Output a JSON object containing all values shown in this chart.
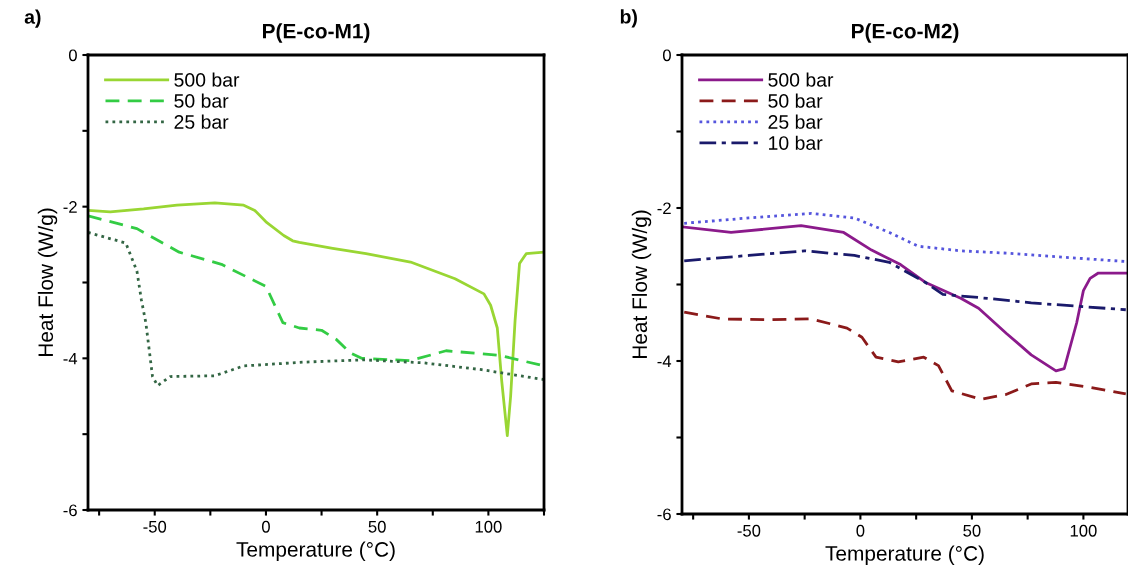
{
  "chart_data": [
    {
      "type": "line",
      "title": "P(E-co-M1)",
      "xlabel": "Temperature (°C)",
      "ylabel": "Heat Flow (W/g)",
      "annotations": [
        "a)"
      ],
      "xlim": [
        -80,
        125
      ],
      "ylim": [
        -6,
        0
      ],
      "xticks": [
        {
          "value": -75,
          "label": null
        },
        -50,
        {
          "value": -25,
          "label": null
        },
        0,
        {
          "value": 25,
          "label": null
        },
        50,
        {
          "value": 75,
          "label": null
        },
        100,
        {
          "value": 125,
          "label": null
        }
      ],
      "yticks": [
        -6,
        {
          "value": -5,
          "label": null
        },
        -4,
        {
          "value": -3,
          "label": null
        },
        -2,
        {
          "value": -1,
          "label": null
        },
        0
      ],
      "grid": false,
      "legend": "top left",
      "marker": "none",
      "series": [
        {
          "name": "500 bar",
          "color": "#99d633",
          "line_style": "solid",
          "x": [
            -80,
            -70,
            -55,
            -40,
            -23,
            -10,
            -5,
            0,
            8,
            12,
            15,
            30,
            45,
            65,
            85,
            98,
            101,
            104,
            106,
            108.5,
            110,
            112,
            114,
            117,
            125
          ],
          "values": [
            -2.05,
            -2.07,
            -2.03,
            -1.98,
            -1.95,
            -1.98,
            -2.05,
            -2.2,
            -2.38,
            -2.45,
            -2.47,
            -2.55,
            -2.62,
            -2.73,
            -2.95,
            -3.15,
            -3.3,
            -3.6,
            -4.3,
            -5.02,
            -4.5,
            -3.5,
            -2.75,
            -2.62,
            -2.6
          ]
        },
        {
          "name": "50 bar",
          "color": "#33cc44",
          "line_style": "dashed",
          "x": [
            -80,
            -58,
            -39,
            -20,
            -7,
            0,
            7.6,
            15,
            25,
            31.6,
            38,
            43,
            65,
            81,
            105,
            125
          ],
          "values": [
            -2.12,
            -2.29,
            -2.6,
            -2.76,
            -2.95,
            -3.05,
            -3.53,
            -3.6,
            -3.63,
            -3.75,
            -3.93,
            -4.0,
            -4.03,
            -3.9,
            -3.96,
            -4.1
          ]
        },
        {
          "name": "25 bar",
          "color": "#336644",
          "line_style": "dotted",
          "x": [
            -80,
            -63,
            -58,
            -56,
            -54,
            -51,
            -48.7,
            -43,
            -23,
            -10,
            17,
            44,
            71,
            97,
            125
          ],
          "values": [
            -2.34,
            -2.48,
            -2.85,
            -3.23,
            -3.53,
            -4.24,
            -4.36,
            -4.24,
            -4.23,
            -4.1,
            -4.05,
            -4.02,
            -4.06,
            -4.15,
            -4.28
          ]
        }
      ]
    },
    {
      "type": "line",
      "title": "P(E-co-M2)",
      "xlabel": "Temperature (°C)",
      "ylabel": "Heat Flow (W/g)",
      "annotations": [
        "b)"
      ],
      "xlim": [
        -80,
        120
      ],
      "ylim": [
        -6,
        0
      ],
      "xticks": [
        {
          "value": -75,
          "label": null
        },
        -50,
        {
          "value": -25,
          "label": null
        },
        0,
        {
          "value": 25,
          "label": null
        },
        50,
        {
          "value": 75,
          "label": null
        },
        100
      ],
      "yticks": [
        -6,
        {
          "value": -5,
          "label": null
        },
        -4,
        {
          "value": -3,
          "label": null
        },
        -2,
        {
          "value": -1,
          "label": null
        },
        0
      ],
      "grid": false,
      "legend": "top left",
      "marker": "none",
      "series": [
        {
          "name": "500 bar",
          "color": "#8b1a8b",
          "line_style": "solid",
          "x": [
            -79,
            -58,
            -26.6,
            -7.5,
            5,
            18,
            29,
            45,
            53,
            65.5,
            76.6,
            87.7,
            91.4,
            97,
            100,
            103,
            106.7,
            119
          ],
          "values": [
            -2.25,
            -2.32,
            -2.23,
            -2.32,
            -2.55,
            -2.74,
            -2.97,
            -3.18,
            -3.31,
            -3.64,
            -3.92,
            -4.13,
            -4.1,
            -3.5,
            -3.08,
            -2.92,
            -2.85,
            -2.85
          ]
        },
        {
          "name": "50 bar",
          "color": "#8b1a1a",
          "line_style": "dashed",
          "x": [
            -79,
            -62,
            -41,
            -22,
            -6,
            0.7,
            7,
            17,
            28.4,
            35,
            41,
            54,
            65,
            76.6,
            87.7,
            102,
            119
          ],
          "values": [
            -3.36,
            -3.45,
            -3.46,
            -3.45,
            -3.57,
            -3.69,
            -3.95,
            -4.01,
            -3.95,
            -4.06,
            -4.39,
            -4.5,
            -4.44,
            -4.3,
            -4.28,
            -4.34,
            -4.43
          ]
        },
        {
          "name": "25 bar",
          "color": "#5555dd",
          "line_style": "dotted",
          "x": [
            -79,
            -50,
            -22,
            -2.7,
            13,
            26,
            45,
            65.5,
            119
          ],
          "values": [
            -2.2,
            -2.13,
            -2.07,
            -2.13,
            -2.32,
            -2.5,
            -2.56,
            -2.59,
            -2.7
          ]
        },
        {
          "name": "10 bar",
          "color": "#1a1a6b",
          "line_style": "dashdot",
          "x": [
            -79,
            -50,
            -25,
            -2.7,
            13,
            29,
            37,
            53,
            76.6,
            119
          ],
          "values": [
            -2.69,
            -2.62,
            -2.56,
            -2.62,
            -2.71,
            -2.97,
            -3.13,
            -3.17,
            -3.24,
            -3.33
          ]
        }
      ]
    }
  ]
}
